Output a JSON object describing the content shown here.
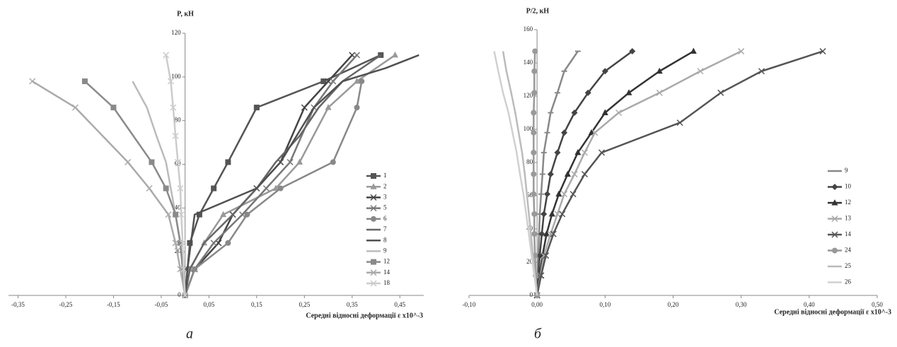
{
  "chart_data": [
    {
      "type": "line",
      "ylabel": "P, кН",
      "xlabel": "Середні відносні деформації  ε x10^-3",
      "caption": "а",
      "xlim": [
        -0.37,
        0.5
      ],
      "ylim": [
        0,
        120
      ],
      "xticks": [
        {
          "value": -0.35,
          "label": "-0,35"
        },
        {
          "value": -0.25,
          "label": "-0,25"
        },
        {
          "value": -0.15,
          "label": "-0,15"
        },
        {
          "value": -0.05,
          "label": "-0,05"
        },
        {
          "value": 0.05,
          "label": "0,05"
        },
        {
          "value": 0.15,
          "label": "0,15"
        },
        {
          "value": 0.25,
          "label": "0,25"
        },
        {
          "value": 0.35,
          "label": "0,35"
        },
        {
          "value": 0.45,
          "label": "0,45"
        }
      ],
      "yticks": [
        0,
        20,
        40,
        60,
        80,
        100,
        120
      ],
      "grid": false,
      "legend": "right",
      "series": [
        {
          "name": "1",
          "color": "#555555",
          "marker": "square",
          "x": [
            0,
            0.005,
            0.01,
            0.03,
            0.06,
            0.09,
            0.15,
            0.29,
            0.41
          ],
          "values": [
            0,
            12,
            24,
            37,
            49,
            61,
            86,
            98,
            110
          ]
        },
        {
          "name": "2",
          "color": "#999999",
          "marker": "triangle",
          "x": [
            0,
            0.01,
            0.04,
            0.08,
            0.19,
            0.24,
            0.3,
            0.36,
            0.44
          ],
          "values": [
            0,
            12,
            24,
            37,
            49,
            61,
            86,
            98,
            110
          ]
        },
        {
          "name": "3",
          "color": "#444444",
          "marker": "x",
          "x": [
            0,
            0.02,
            0.07,
            0.1,
            0.15,
            0.2,
            0.25,
            0.3,
            0.35
          ],
          "values": [
            0,
            12,
            24,
            37,
            49,
            61,
            86,
            98,
            110
          ]
        },
        {
          "name": "5",
          "color": "#777777",
          "marker": "x",
          "x": [
            0,
            0.02,
            0.06,
            0.12,
            0.17,
            0.22,
            0.27,
            0.31,
            0.36
          ],
          "values": [
            0,
            12,
            24,
            37,
            49,
            61,
            86,
            98,
            110
          ]
        },
        {
          "name": "6",
          "color": "#888888",
          "marker": "circle",
          "x": [
            0,
            0.02,
            0.09,
            0.13,
            0.2,
            0.31,
            0.36,
            0.37
          ],
          "values": [
            0,
            12,
            24,
            37,
            49,
            61,
            86,
            98
          ]
        },
        {
          "name": "7",
          "color": "#666666",
          "marker": "none",
          "x": [
            0,
            0.01,
            0.04,
            0.1,
            0.15,
            0.19,
            0.24,
            0.28,
            0.33,
            0.41
          ],
          "values": [
            0,
            12,
            24,
            37,
            49,
            61,
            73,
            86,
            98,
            110
          ]
        },
        {
          "name": "8",
          "color": "#505050",
          "marker": "none",
          "x": [
            0,
            0.005,
            0.02,
            0.15,
            0.2,
            0.27,
            0.33,
            0.42,
            0.49
          ],
          "values": [
            0,
            12,
            37,
            49,
            61,
            86,
            98,
            104,
            110
          ]
        },
        {
          "name": "9",
          "color": "#bbbbbb",
          "marker": "none",
          "x": [
            0,
            -0.005,
            -0.01,
            -0.02,
            -0.03,
            -0.04,
            -0.06,
            -0.08,
            -0.11
          ],
          "values": [
            0,
            12,
            24,
            37,
            49,
            61,
            73,
            86,
            98
          ]
        },
        {
          "name": "12",
          "color": "#8a8a8a",
          "marker": "square",
          "x": [
            0,
            -0.005,
            -0.01,
            -0.02,
            -0.04,
            -0.07,
            -0.15,
            -0.21
          ],
          "values": [
            0,
            12,
            24,
            37,
            49,
            61,
            86,
            98
          ]
        },
        {
          "name": "14",
          "color": "#aaaaaa",
          "marker": "x",
          "x": [
            0,
            -0.01,
            -0.02,
            -0.035,
            -0.075,
            -0.12,
            -0.23,
            -0.32
          ],
          "values": [
            0,
            12,
            24,
            37,
            49,
            61,
            86,
            98
          ]
        },
        {
          "name": "18",
          "color": "#cccccc",
          "marker": "x",
          "x": [
            0,
            -0.003,
            -0.005,
            -0.008,
            -0.01,
            -0.015,
            -0.02,
            -0.025,
            -0.03,
            -0.04
          ],
          "values": [
            0,
            12,
            24,
            37,
            49,
            61,
            73,
            86,
            98,
            110
          ]
        }
      ]
    },
    {
      "type": "line",
      "ylabel": "P/2, кН",
      "xlabel": "Середні відносні деформації ε x10^-3",
      "caption": "б",
      "xlim": [
        -0.1,
        0.5
      ],
      "ylim": [
        0,
        160
      ],
      "xticks": [
        {
          "value": -0.1,
          "label": "-0,10"
        },
        {
          "value": 0,
          "label": "0,00"
        },
        {
          "value": 0.1,
          "label": "0,10"
        },
        {
          "value": 0.2,
          "label": "0,20"
        },
        {
          "value": 0.3,
          "label": "0,30"
        },
        {
          "value": 0.4,
          "label": "0,40"
        },
        {
          "value": 0.5,
          "label": "0,50"
        }
      ],
      "yticks": [
        0,
        20,
        40,
        60,
        80,
        100,
        120,
        140,
        160
      ],
      "grid": false,
      "legend": "right",
      "series": [
        {
          "name": "9",
          "color": "#888888",
          "marker": "dash",
          "x": [
            0,
            0.001,
            0.002,
            0.003,
            0.004,
            0.006,
            0.008,
            0.01,
            0.015,
            0.02,
            0.03,
            0.04,
            0.06
          ],
          "values": [
            0,
            12,
            24,
            37,
            49,
            61,
            73,
            86,
            98,
            110,
            122,
            135,
            147
          ]
        },
        {
          "name": "10",
          "color": "#444444",
          "marker": "diamond",
          "x": [
            0,
            0.002,
            0.004,
            0.007,
            0.01,
            0.015,
            0.02,
            0.03,
            0.04,
            0.055,
            0.075,
            0.1,
            0.14
          ],
          "values": [
            0,
            12,
            24,
            37,
            49,
            61,
            73,
            86,
            98,
            110,
            122,
            135,
            147
          ]
        },
        {
          "name": "12",
          "color": "#333333",
          "marker": "triangle",
          "x": [
            0,
            0.004,
            0.008,
            0.014,
            0.022,
            0.032,
            0.045,
            0.06,
            0.08,
            0.1,
            0.135,
            0.18,
            0.23
          ],
          "values": [
            0,
            12,
            24,
            37,
            49,
            61,
            73,
            86,
            98,
            110,
            122,
            135,
            147
          ]
        },
        {
          "name": "13",
          "color": "#aaaaaa",
          "marker": "x",
          "x": [
            0,
            0.005,
            0.01,
            0.02,
            0.03,
            0.04,
            0.055,
            0.07,
            0.085,
            0.12,
            0.18,
            0.24,
            0.3
          ],
          "values": [
            0,
            12,
            24,
            37,
            49,
            61,
            73,
            86,
            98,
            110,
            122,
            135,
            147
          ]
        },
        {
          "name": "14",
          "color": "#555555",
          "marker": "x",
          "x": [
            0,
            0.006,
            0.013,
            0.024,
            0.037,
            0.053,
            0.07,
            0.095,
            0.21,
            0.27,
            0.33,
            0.42
          ],
          "values": [
            0,
            12,
            24,
            37,
            49,
            61,
            73,
            86,
            104,
            122,
            135,
            147
          ]
        },
        {
          "name": "24",
          "color": "#999999",
          "marker": "circle",
          "x": [
            0,
            -0.002,
            -0.003,
            -0.004,
            -0.004,
            -0.005,
            -0.005,
            -0.005,
            -0.005,
            -0.005,
            -0.004,
            -0.004,
            -0.003
          ],
          "values": [
            0,
            12,
            24,
            37,
            49,
            61,
            73,
            86,
            98,
            110,
            122,
            135,
            147
          ]
        },
        {
          "name": "25",
          "color": "#bbbbbb",
          "marker": "none",
          "x": [
            0,
            -0.003,
            -0.006,
            -0.009,
            -0.012,
            -0.015,
            -0.018,
            -0.022,
            -0.027,
            -0.032,
            -0.038,
            -0.045,
            -0.05
          ],
          "values": [
            0,
            12,
            24,
            37,
            49,
            61,
            73,
            86,
            98,
            110,
            122,
            135,
            147
          ]
        },
        {
          "name": "26",
          "color": "#d0d0d0",
          "marker": "none",
          "x": [
            0,
            -0.004,
            -0.008,
            -0.012,
            -0.016,
            -0.02,
            -0.025,
            -0.03,
            -0.036,
            -0.042,
            -0.05,
            -0.057,
            -0.063
          ],
          "values": [
            0,
            12,
            24,
            37,
            49,
            61,
            73,
            86,
            98,
            110,
            122,
            135,
            147
          ]
        }
      ]
    }
  ]
}
